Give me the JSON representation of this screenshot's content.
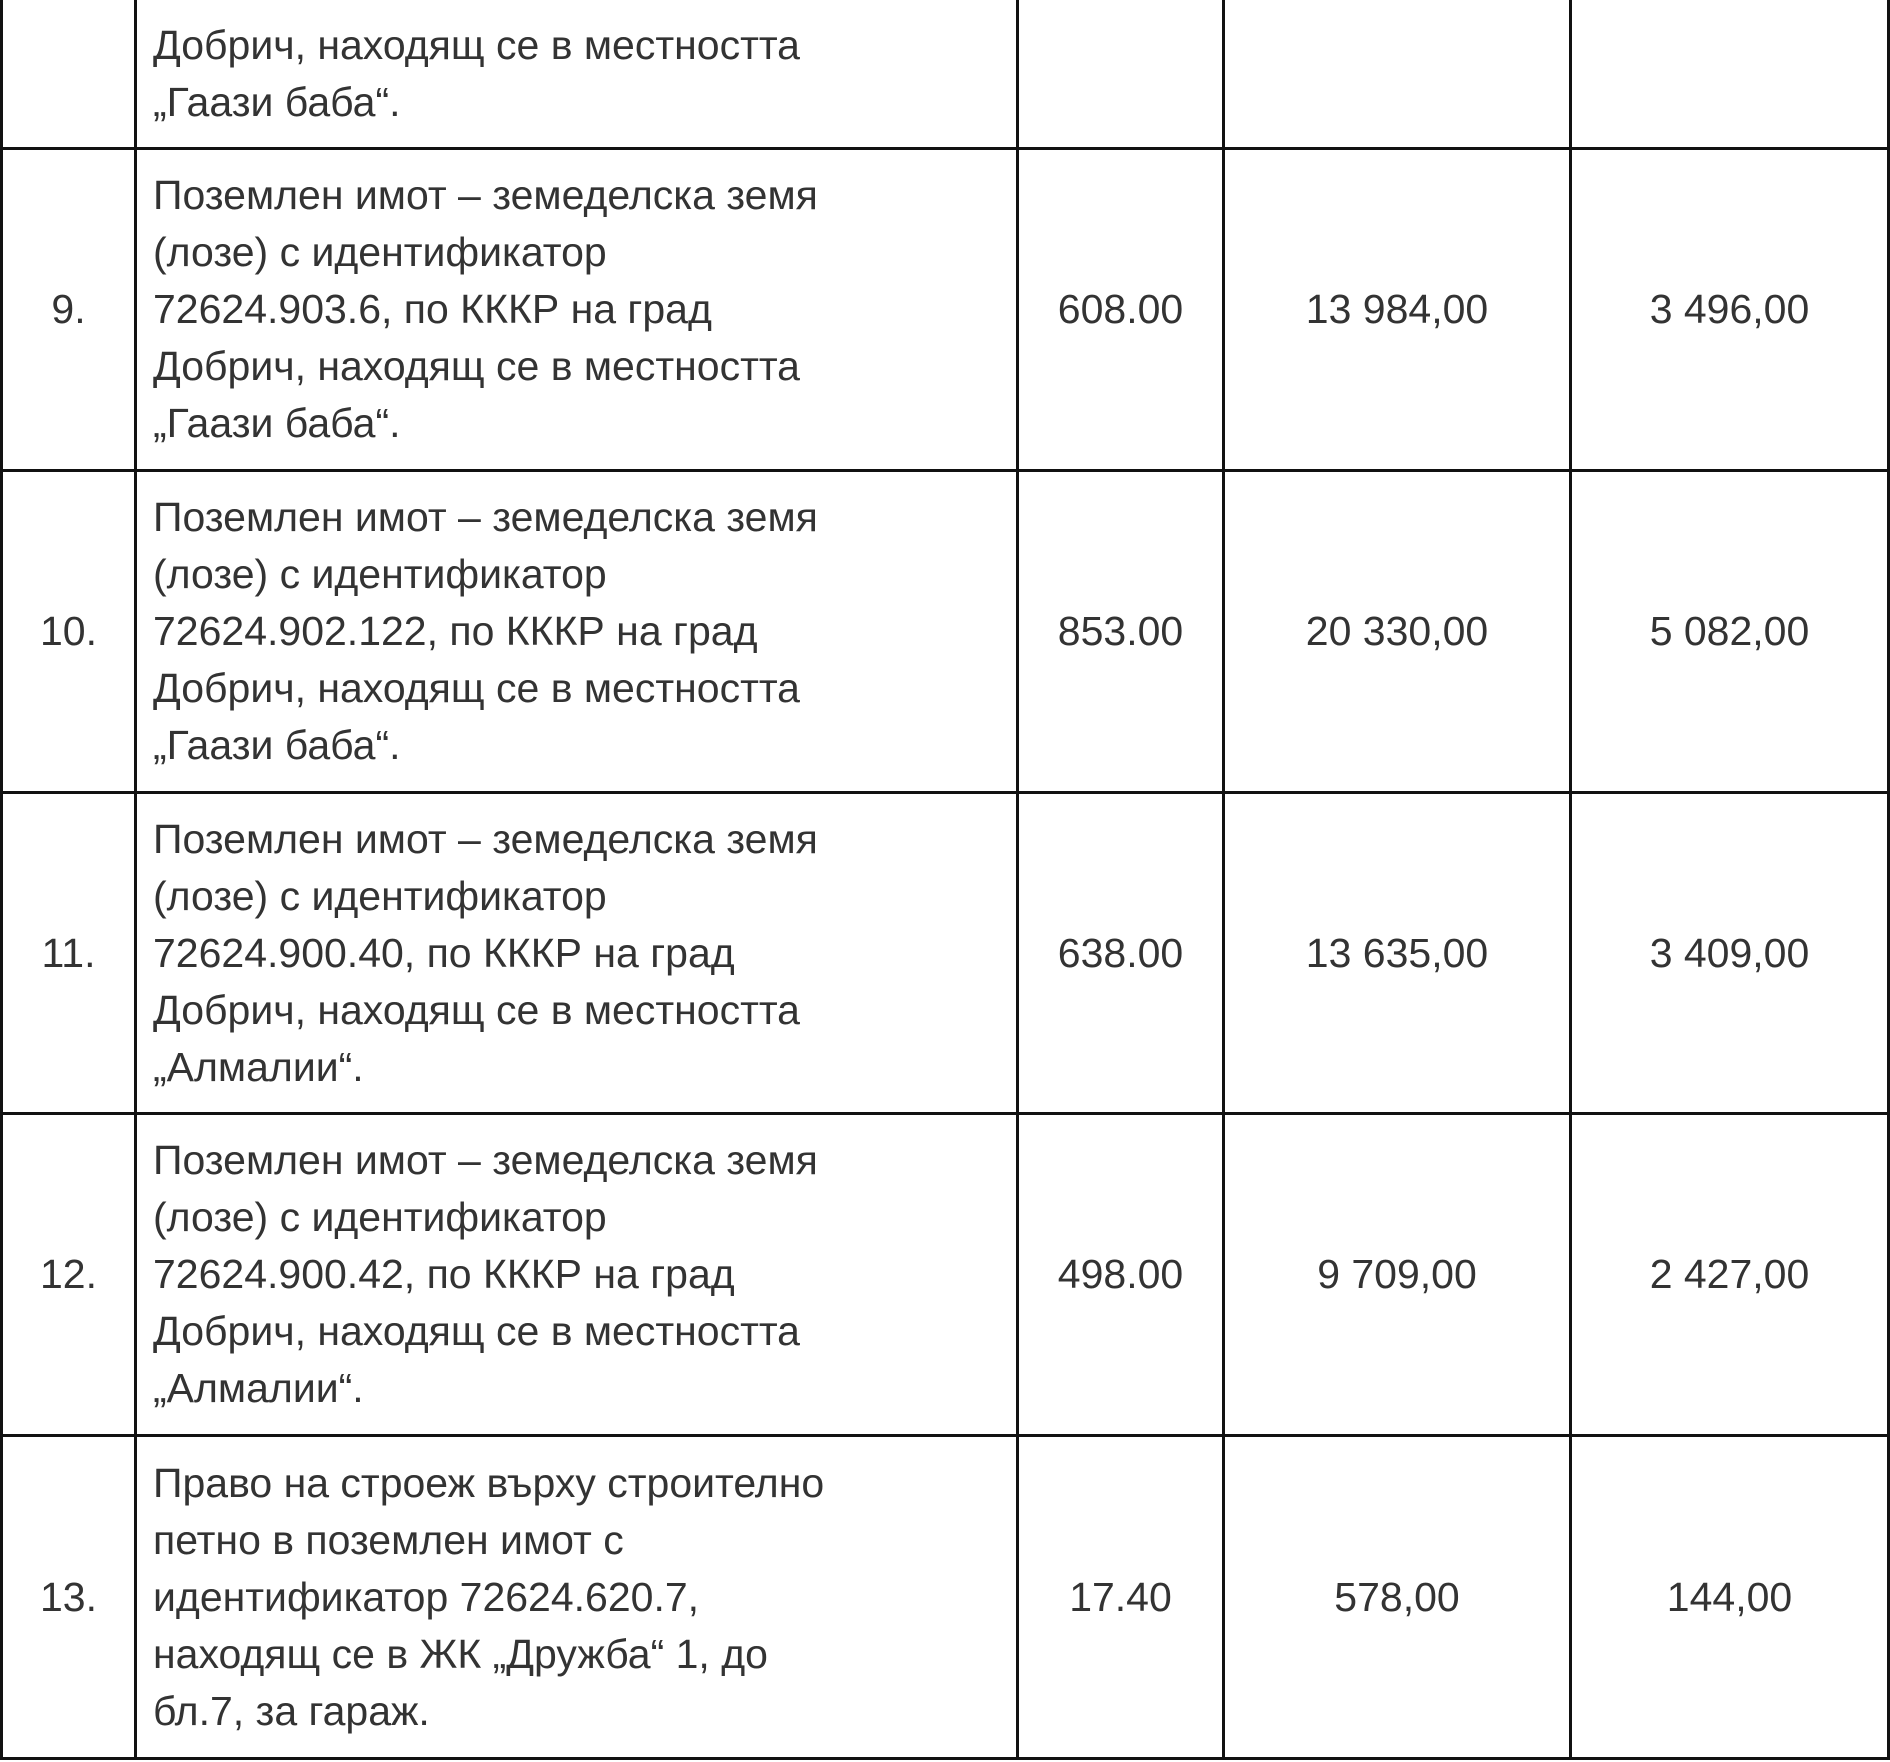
{
  "rows": [
    {
      "no": "",
      "desc": [
        "Добрич, находящ се в местността",
        "„Гаази баба“."
      ],
      "area": "",
      "value1": "",
      "value2": ""
    },
    {
      "no": "9.",
      "desc": [
        "Поземлен имот – земеделска земя",
        "(лозе) с идентификатор",
        "72624.903.6, по КККР на град",
        "Добрич, находящ се в местността",
        "„Гаази баба“."
      ],
      "area": "608.00",
      "value1": "13 984,00",
      "value2": "3 496,00"
    },
    {
      "no": "10.",
      "desc": [
        "Поземлен имот – земеделска земя",
        "(лозе) с идентификатор",
        "72624.902.122, по КККР на град",
        "Добрич, находящ се в местността",
        "„Гаази баба“."
      ],
      "area": "853.00",
      "value1": "20 330,00",
      "value2": "5 082,00"
    },
    {
      "no": "11.",
      "desc": [
        "Поземлен имот – земеделска земя",
        "(лозе) с идентификатор",
        "72624.900.40, по КККР на град",
        "Добрич, находящ се в местността",
        "„Алмалии“."
      ],
      "area": "638.00",
      "value1": "13 635,00",
      "value2": "3 409,00"
    },
    {
      "no": "12.",
      "desc": [
        "Поземлен имот – земеделска земя",
        "(лозе) с идентификатор",
        "72624.900.42, по КККР на град",
        "Добрич, находящ се в местността",
        "„Алмалии“."
      ],
      "area": "498.00",
      "value1": "9 709,00",
      "value2": "2 427,00"
    },
    {
      "no": "13.",
      "desc": [
        "Право на строеж върху строително",
        "петно в поземлен имот с",
        "идентификатор 72624.620.7,",
        "находящ се в ЖК „Дружба“ 1, до",
        "бл.7, за гараж."
      ],
      "area": "17.40",
      "value1": "578,00",
      "value2": "144,00"
    }
  ]
}
